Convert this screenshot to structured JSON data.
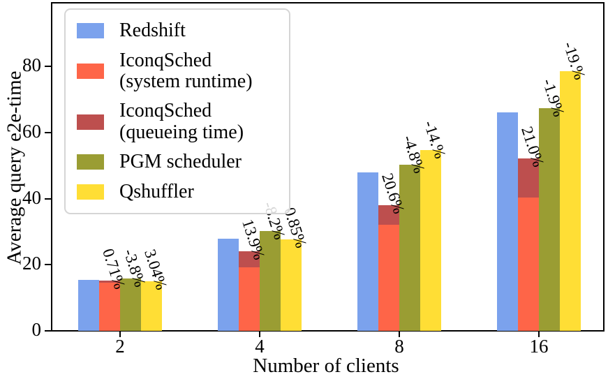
{
  "chart_data": {
    "type": "bar",
    "title": "",
    "xlabel": "Number of clients",
    "ylabel": "Average query e2e-time",
    "categories": [
      "2",
      "4",
      "8",
      "16"
    ],
    "yticks": [
      0,
      20,
      40,
      60,
      80
    ],
    "ylim": [
      0,
      99.5
    ],
    "grid": false,
    "legend_position": "upper-left",
    "series": [
      {
        "name": "Redshift",
        "values": [
          15.4,
          27.8,
          48.0,
          66.0
        ]
      },
      {
        "name": "IconqSched (system runtime)",
        "values": [
          14.6,
          19.2,
          32.2,
          40.3
        ]
      },
      {
        "name": "IconqSched (queueing time)",
        "values": [
          15.2,
          24.0,
          38.1,
          52.1
        ],
        "note": "stacked on top of system runtime; value is total e2e-time"
      },
      {
        "name": "PGM scheduler",
        "values": [
          15.9,
          30.3,
          50.3,
          67.3
        ]
      },
      {
        "name": "Qshuffler",
        "values": [
          14.9,
          27.6,
          54.8,
          78.6
        ]
      }
    ],
    "annotations": {
      "iconqsched": [
        "0.71%",
        "13.9%",
        "20.6%",
        "21.0%"
      ],
      "pgm": [
        "-3.8%",
        "-8.2%",
        "-4.8%",
        "-1.9%"
      ],
      "qshuffler": [
        "3.04%",
        "0.85%",
        "-14.%",
        "-19.%"
      ]
    }
  },
  "legend": {
    "items": [
      {
        "label": "Redshift",
        "color": "#7ba2ed"
      },
      {
        "label": "IconqSched\n(system runtime)",
        "color": "#fe6548"
      },
      {
        "label": "IconqSched\n(queueing time)",
        "color": "#bd4f4e"
      },
      {
        "label": "PGM scheduler",
        "color": "#9a9d33"
      },
      {
        "label": "Qshuffler",
        "color": "#ffde35"
      }
    ]
  },
  "colors": {
    "redshift": "#7ba2ed",
    "iconq_runtime": "#fe6548",
    "iconq_queueing": "#bd4f4e",
    "pgm": "#9a9d33",
    "qshuffler": "#ffde35",
    "axis": "#000000",
    "legend_border": "#d5d5d5"
  }
}
